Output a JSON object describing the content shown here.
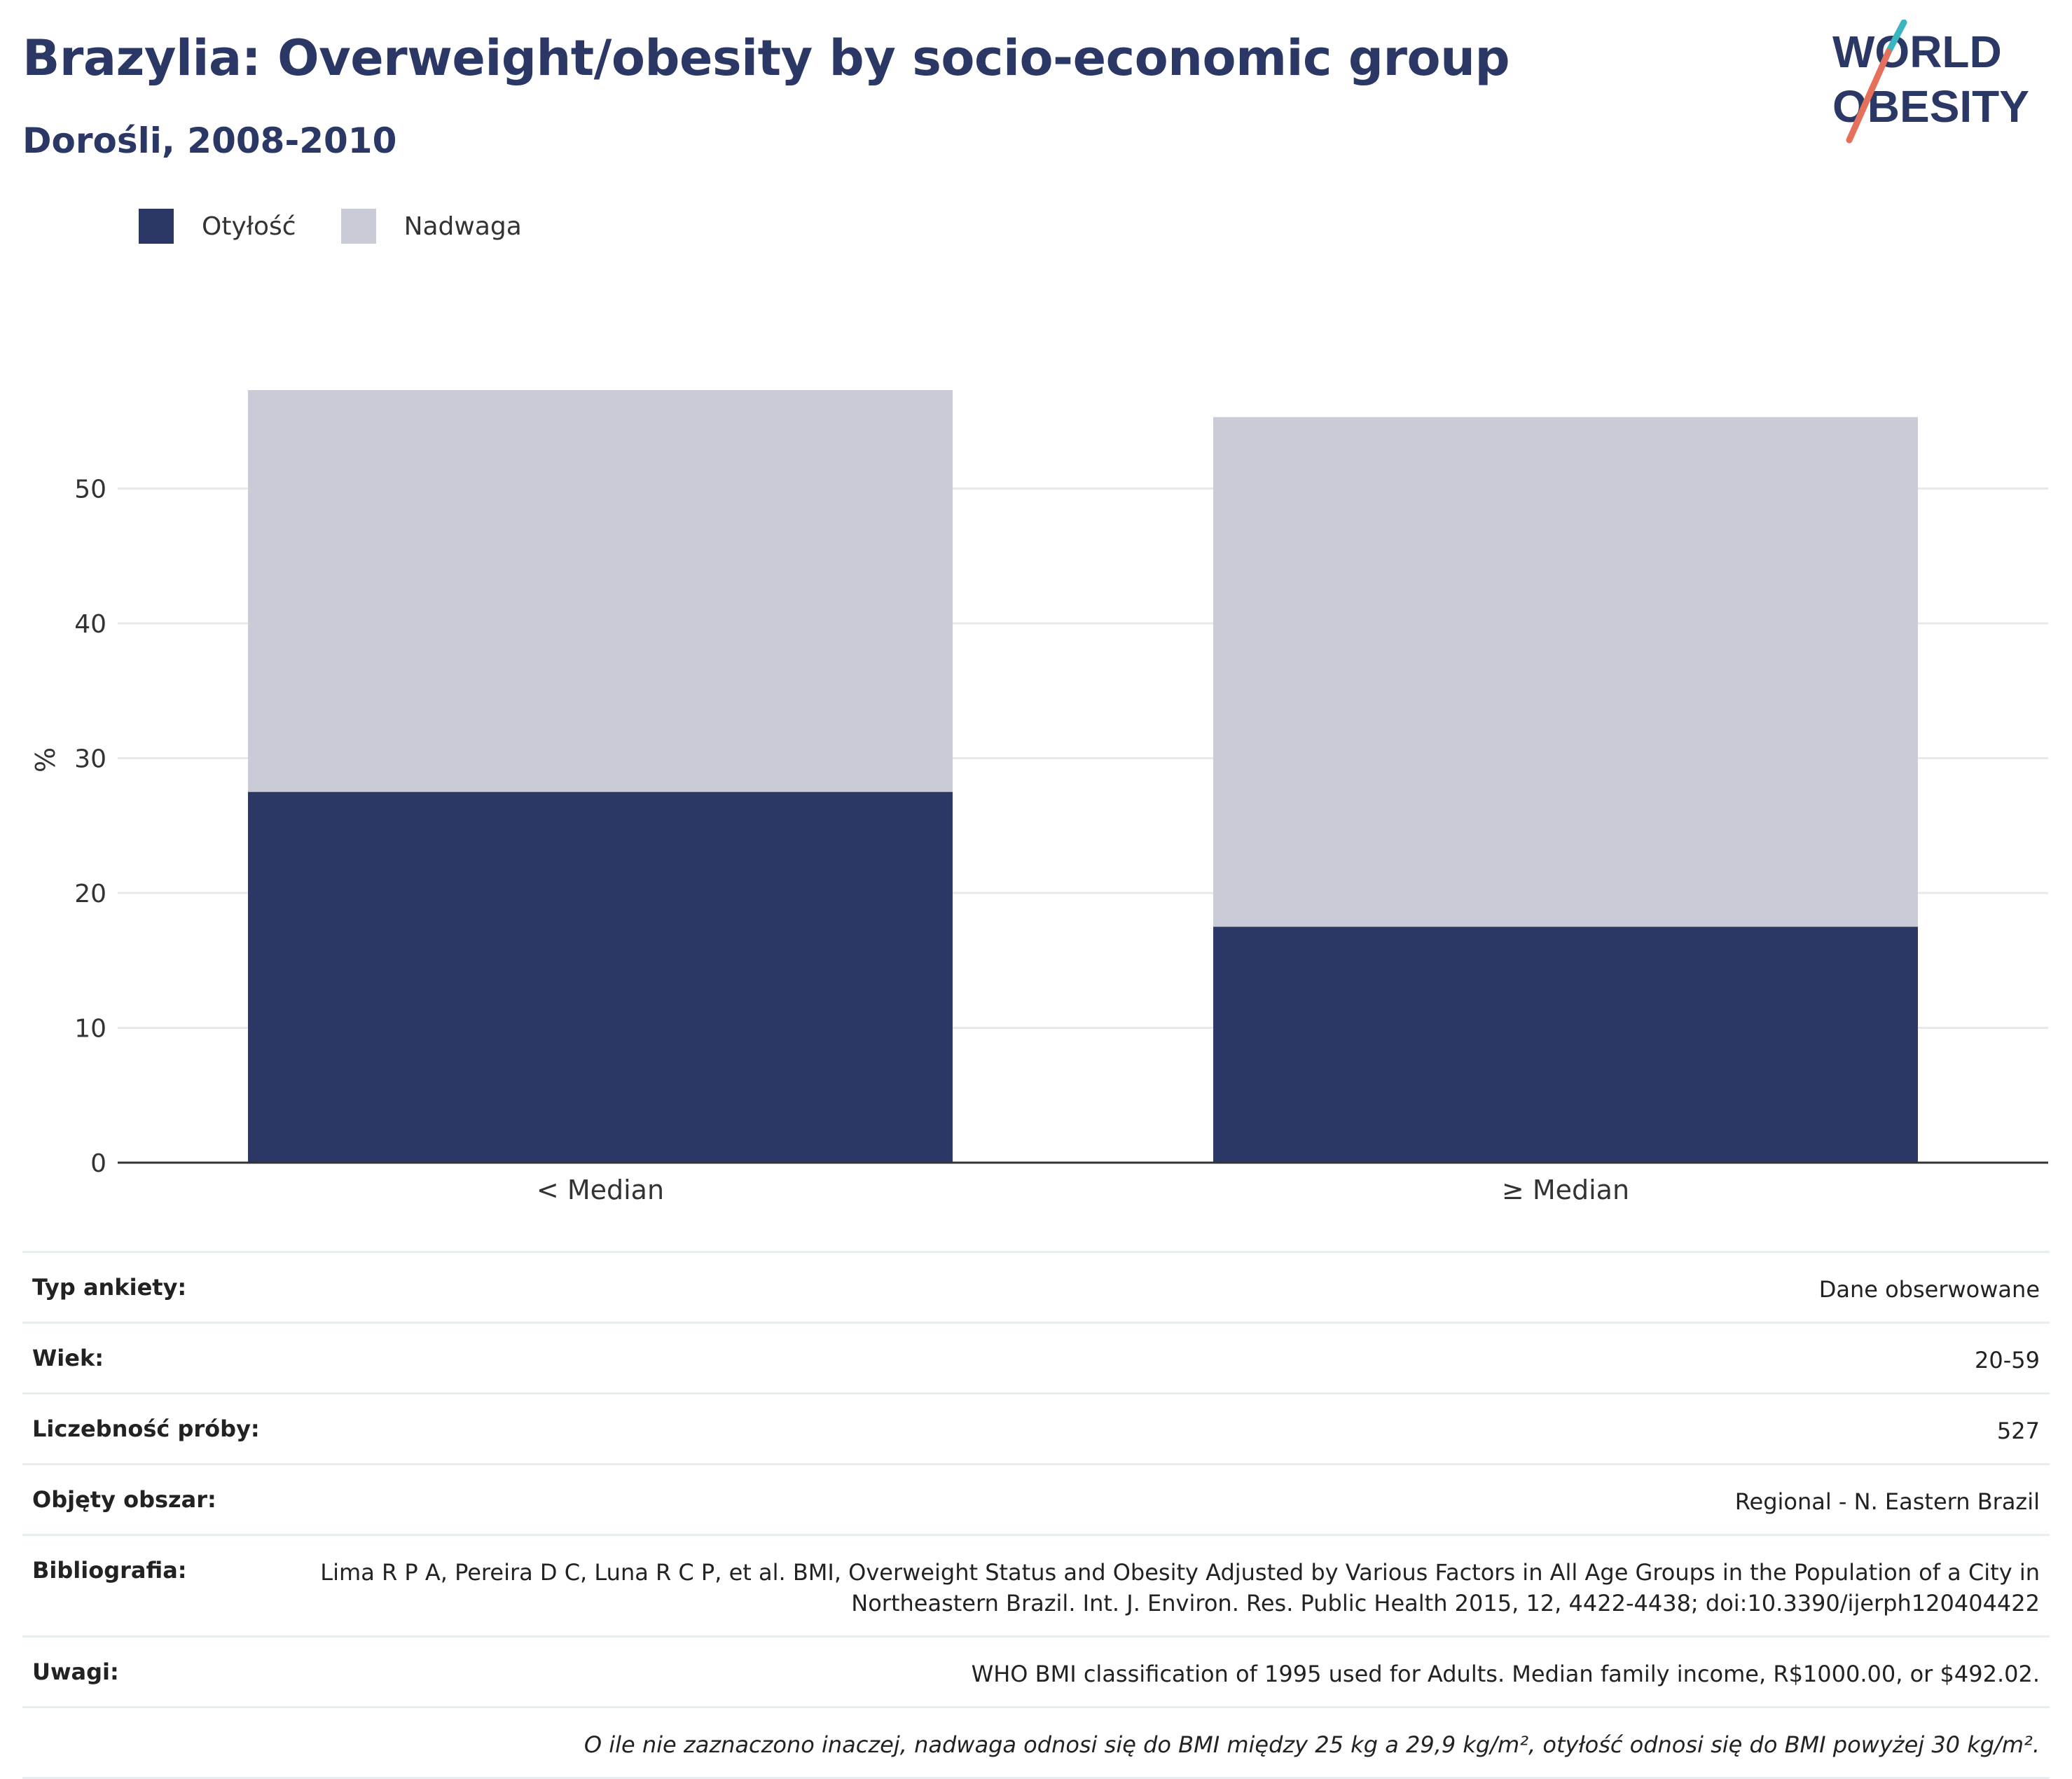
{
  "header": {
    "title": "Brazylia: Overweight/obesity by socio-economic group",
    "subtitle": "Dorośli, 2008-2010"
  },
  "logo": {
    "line1": "WORLD",
    "line2": "OBESITY"
  },
  "legend": [
    {
      "label": "Otyłość",
      "color": "#2b3764"
    },
    {
      "label": "Nadwaga",
      "color": "#c9cbd7"
    }
  ],
  "chart_data": {
    "type": "bar",
    "stacked": true,
    "categories": [
      "< Median",
      "≥ Median"
    ],
    "series": [
      {
        "name": "Otyłość",
        "color": "#2b3764",
        "values": [
          27.5,
          17.5
        ]
      },
      {
        "name": "Nadwaga",
        "color": "#c9cbd7",
        "values": [
          29.8,
          37.8
        ]
      }
    ],
    "ylabel": "%",
    "ylim": [
      0,
      60
    ],
    "yticks": [
      0,
      10,
      20,
      30,
      40,
      50
    ],
    "grid": true
  },
  "info": [
    {
      "label": "Typ ankiety:",
      "value": "Dane obserwowane"
    },
    {
      "label": "Wiek:",
      "value": "20-59"
    },
    {
      "label": "Liczebność próby:",
      "value": "527"
    },
    {
      "label": "Objęty obszar:",
      "value": "Regional - N. Eastern Brazil"
    },
    {
      "label": "Bibliografia:",
      "value": "Lima R P A, Pereira D C, Luna R C P, et al. BMI, Overweight Status and Obesity Adjusted by Various Factors in All Age Groups in the Population of a City in Northeastern Brazil. Int. J. Environ. Res. Public Health 2015, 12, 4422-4438; doi:10.3390/ijerph120404422"
    },
    {
      "label": "Uwagi:",
      "value": "WHO BMI classification of 1995 used for Adults. Median family income, R$1000.00, or $492.02."
    }
  ],
  "footnote": "O ile nie zaznaczono inaczej, nadwaga odnosi się do BMI między 25 kg a 29,9 kg/m², otyłość odnosi się do BMI powyżej 30 kg/m²."
}
